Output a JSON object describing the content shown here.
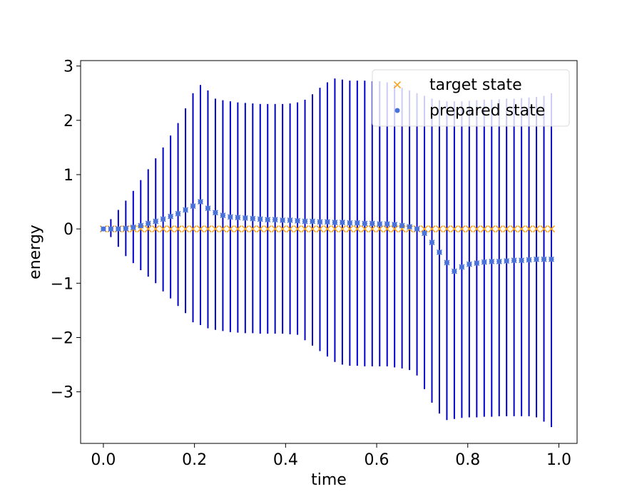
{
  "chart_data": {
    "type": "scatter",
    "xlabel": "time",
    "ylabel": "energy",
    "xlim": [
      -0.05,
      1.04
    ],
    "ylim": [
      -3.95,
      3.1
    ],
    "xticks": [
      0.0,
      0.2,
      0.4,
      0.6,
      0.8,
      1.0
    ],
    "xtick_labels": [
      "0.0",
      "0.2",
      "0.4",
      "0.6",
      "0.8",
      "1.0"
    ],
    "yticks": [
      -3,
      -2,
      -1,
      0,
      1,
      2,
      3
    ],
    "ytick_labels": [
      "−3",
      "−2",
      "−1",
      "0",
      "1",
      "2",
      "3"
    ],
    "grid": false,
    "legend_position": "top-right",
    "x": [
      0.0,
      0.0164,
      0.0328,
      0.0492,
      0.0656,
      0.082,
      0.0984,
      0.1148,
      0.1311,
      0.1475,
      0.1639,
      0.1803,
      0.1967,
      0.2131,
      0.2295,
      0.2459,
      0.2623,
      0.2787,
      0.2951,
      0.3115,
      0.3279,
      0.3443,
      0.3607,
      0.377,
      0.3934,
      0.4098,
      0.4262,
      0.4426,
      0.459,
      0.4754,
      0.4918,
      0.5082,
      0.5246,
      0.541,
      0.5574,
      0.5738,
      0.5902,
      0.6066,
      0.623,
      0.6393,
      0.6557,
      0.6721,
      0.6885,
      0.7049,
      0.7213,
      0.7377,
      0.7541,
      0.7705,
      0.7869,
      0.8033,
      0.8197,
      0.8361,
      0.8525,
      0.8689,
      0.8852,
      0.9016,
      0.918,
      0.9344,
      0.9508,
      0.9672,
      0.9836
    ],
    "series": [
      {
        "name": "target state",
        "marker": "x",
        "color": "#f5a623",
        "values": [
          0,
          0,
          0,
          0,
          0,
          0,
          0,
          0,
          0,
          0,
          0,
          0,
          0,
          0,
          0,
          0,
          0,
          0,
          0,
          0,
          0,
          0,
          0,
          0,
          0,
          0,
          0,
          0,
          0,
          0,
          0,
          0,
          0,
          0,
          0,
          0,
          0,
          0,
          0,
          0,
          0,
          0,
          0,
          0,
          0,
          0,
          0,
          0,
          0,
          0,
          0,
          0,
          0,
          0,
          0,
          0,
          0,
          0,
          0,
          0,
          0
        ]
      },
      {
        "name": "prepared state",
        "marker": "o",
        "color": "#4a72d8",
        "errorbar_color": "#0000cc",
        "values": [
          0.0,
          0.0,
          0.0,
          0.01,
          0.03,
          0.06,
          0.1,
          0.14,
          0.18,
          0.23,
          0.28,
          0.35,
          0.42,
          0.5,
          0.38,
          0.3,
          0.25,
          0.22,
          0.21,
          0.2,
          0.19,
          0.18,
          0.17,
          0.17,
          0.16,
          0.16,
          0.15,
          0.14,
          0.14,
          0.13,
          0.13,
          0.12,
          0.12,
          0.11,
          0.11,
          0.1,
          0.1,
          0.09,
          0.09,
          0.08,
          0.06,
          0.04,
          0.0,
          -0.08,
          -0.25,
          -0.43,
          -0.62,
          -0.78,
          -0.7,
          -0.65,
          -0.63,
          -0.61,
          -0.6,
          -0.6,
          -0.59,
          -0.58,
          -0.58,
          -0.57,
          -0.56,
          -0.56,
          -0.56
        ],
        "error_low": [
          0.0,
          -0.15,
          -0.33,
          -0.5,
          -0.63,
          -0.76,
          -0.88,
          -1.0,
          -1.15,
          -1.28,
          -1.42,
          -1.55,
          -1.72,
          -1.77,
          -1.83,
          -1.86,
          -1.88,
          -1.9,
          -1.91,
          -1.92,
          -1.92,
          -1.93,
          -1.93,
          -1.93,
          -1.93,
          -1.94,
          -1.95,
          -2.05,
          -2.15,
          -2.25,
          -2.35,
          -2.45,
          -2.5,
          -2.52,
          -2.52,
          -2.53,
          -2.53,
          -2.53,
          -2.53,
          -2.55,
          -2.57,
          -2.6,
          -2.7,
          -2.95,
          -3.2,
          -3.4,
          -3.52,
          -3.5,
          -3.48,
          -3.47,
          -3.47,
          -3.46,
          -3.46,
          -3.45,
          -3.45,
          -3.45,
          -3.45,
          -3.45,
          -3.47,
          -3.55,
          -3.65
        ],
        "error_high": [
          0.0,
          0.18,
          0.35,
          0.52,
          0.7,
          0.9,
          1.1,
          1.3,
          1.5,
          1.72,
          1.95,
          2.22,
          2.5,
          2.65,
          2.55,
          2.4,
          2.37,
          2.35,
          2.33,
          2.32,
          2.31,
          2.3,
          2.3,
          2.3,
          2.3,
          2.31,
          2.33,
          2.38,
          2.48,
          2.6,
          2.7,
          2.77,
          2.75,
          2.73,
          2.73,
          2.73,
          2.72,
          2.72,
          2.7,
          2.65,
          2.6,
          2.55,
          2.5,
          2.45,
          2.4,
          2.37,
          2.35,
          2.35,
          2.35,
          2.36,
          2.37,
          2.38,
          2.38,
          2.39,
          2.4,
          2.4,
          2.41,
          2.42,
          2.43,
          2.45,
          2.5
        ]
      }
    ],
    "legend": [
      {
        "label": "target state",
        "marker": "x",
        "color": "#f5a623"
      },
      {
        "label": "prepared state",
        "marker": "o",
        "color": "#4a72d8"
      }
    ]
  }
}
